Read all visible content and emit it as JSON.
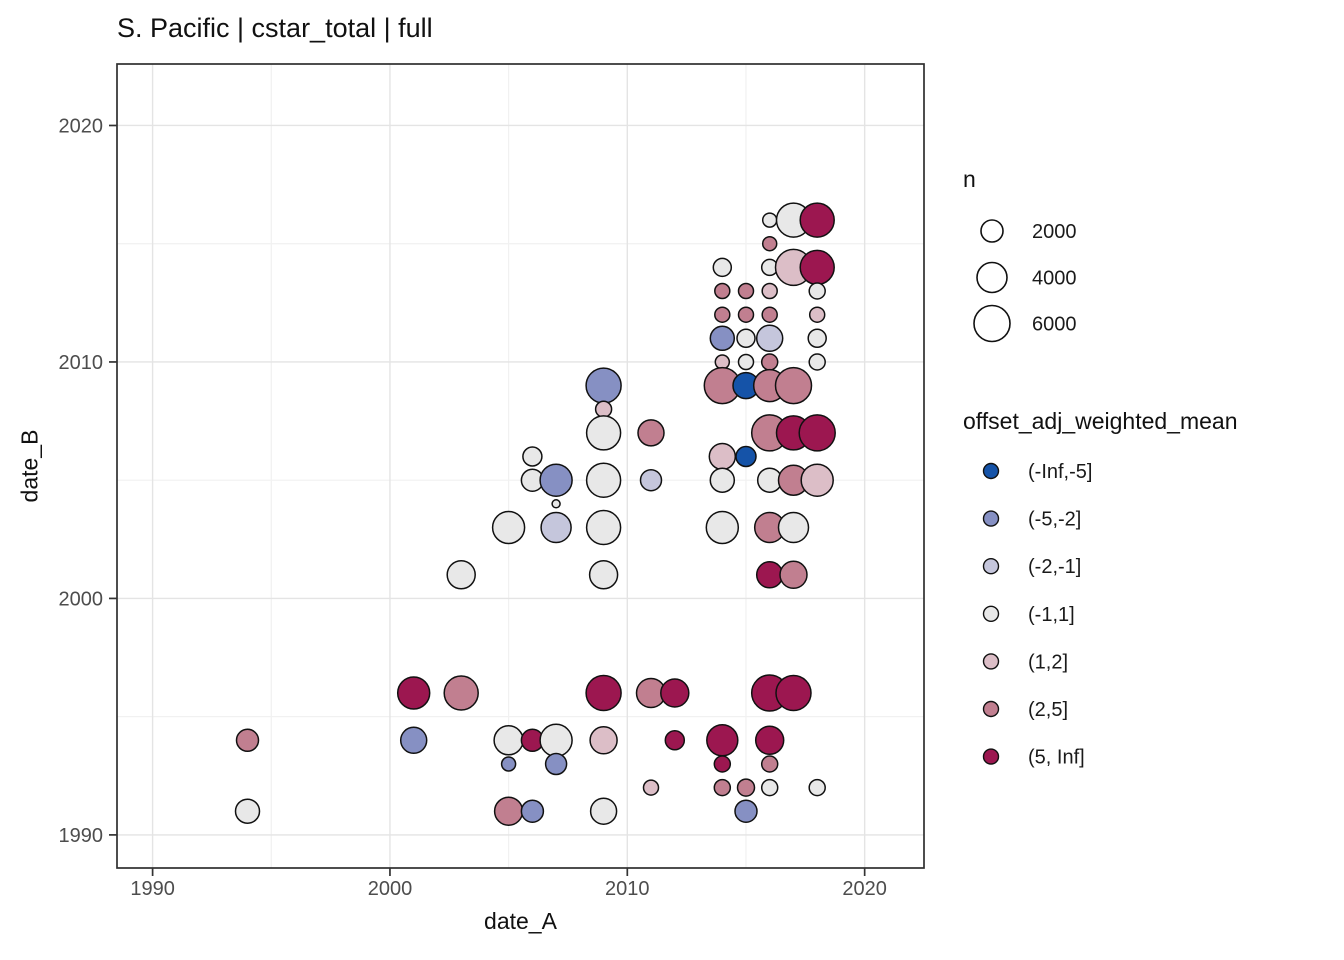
{
  "chart": {
    "title": "S. Pacific | cstar_total | full",
    "x_axis": {
      "title": "date_A",
      "ticks": [
        1990,
        2000,
        2010,
        2020
      ],
      "minor_ticks": [
        1995,
        2005,
        2015
      ],
      "lim": [
        1988.5,
        2022.5
      ]
    },
    "y_axis": {
      "title": "date_B",
      "ticks": [
        1990,
        2000,
        2010,
        2020
      ],
      "minor_ticks": [
        1995,
        2005,
        2015
      ],
      "lim": [
        1988.6,
        2022.6
      ]
    }
  },
  "legend_size": {
    "title": "n",
    "items": [
      {
        "n": "2000",
        "r": 11
      },
      {
        "n": "4000",
        "r": 15
      },
      {
        "n": "6000",
        "r": 18
      }
    ]
  },
  "legend_color": {
    "title": "offset_adj_weighted_mean",
    "items": [
      {
        "label": "(-Inf,-5]",
        "color": "#1553A8"
      },
      {
        "label": "(-5,-2]",
        "color": "#8690C3"
      },
      {
        "label": "(-2,-1]",
        "color": "#C5C6DC"
      },
      {
        "label": "(-1,1]",
        "color": "#E8E8E8"
      },
      {
        "label": "(1,2]",
        "color": "#DCBEC7"
      },
      {
        "label": "(2,5]",
        "color": "#C17F90"
      },
      {
        "label": "(5, Inf]",
        "color": "#9C1750"
      }
    ]
  },
  "chart_data": {
    "type": "scatter",
    "title": "S. Pacific | cstar_total | full",
    "xlabel": "date_A",
    "ylabel": "date_B",
    "xlim": [
      1988.5,
      2022.5
    ],
    "ylim": [
      1988.6,
      2022.6
    ],
    "grid": true,
    "legend_position": "right",
    "size_variable": "n",
    "color_variable": "offset_adj_weighted_mean",
    "color_bins": [
      "(-Inf,-5]",
      "(-5,-2]",
      "(-2,-1]",
      "(-1,1]",
      "(1,2]",
      "(2,5]",
      "(5, Inf]"
    ],
    "point_columns": [
      "date_A",
      "date_B",
      "color_bin_index",
      "radius_px",
      "n_approx"
    ],
    "points": [
      [
        1994,
        1994,
        5,
        11,
        2000
      ],
      [
        1994,
        1991,
        3,
        12,
        2400
      ],
      [
        2001,
        1996,
        6,
        16,
        4200
      ],
      [
        2001,
        1994,
        1,
        13,
        2800
      ],
      [
        2003,
        2001,
        3,
        14,
        3200
      ],
      [
        2003,
        1996,
        5,
        17,
        4800
      ],
      [
        2005,
        2003,
        3,
        16,
        4200
      ],
      [
        2005,
        1994,
        3,
        14.5,
        3500
      ],
      [
        2005,
        1993,
        1,
        7,
        800
      ],
      [
        2005,
        1991,
        5,
        14,
        3200
      ],
      [
        2006,
        2006,
        3,
        9.5,
        1500
      ],
      [
        2006,
        2005,
        3,
        11,
        2000
      ],
      [
        2006,
        1994,
        6,
        11,
        2000
      ],
      [
        2006,
        1991,
        1,
        11,
        2000
      ],
      [
        2007,
        2005,
        1,
        16,
        4200
      ],
      [
        2007,
        2004,
        3,
        4,
        300
      ],
      [
        2007,
        2003,
        2,
        15,
        3700
      ],
      [
        2007,
        1994,
        3,
        16,
        4200
      ],
      [
        2007,
        1993,
        1,
        10.5,
        1800
      ],
      [
        2009,
        2009,
        1,
        17.5,
        5100
      ],
      [
        2009,
        2008,
        4,
        8,
        1100
      ],
      [
        2009,
        2007,
        3,
        17,
        4800
      ],
      [
        2009,
        2005,
        3,
        17,
        4800
      ],
      [
        2009,
        2003,
        3,
        17,
        4800
      ],
      [
        2009,
        2001,
        3,
        14,
        3200
      ],
      [
        2009,
        1996,
        6,
        17.5,
        5100
      ],
      [
        2009,
        1994,
        4,
        13.5,
        3000
      ],
      [
        2009,
        1991,
        3,
        13,
        2800
      ],
      [
        2011,
        2007,
        5,
        13,
        2800
      ],
      [
        2011,
        2005,
        2,
        10.5,
        1800
      ],
      [
        2011,
        1996,
        5,
        14.5,
        3500
      ],
      [
        2011,
        1992,
        4,
        7.5,
        900
      ],
      [
        2012,
        1996,
        6,
        14,
        3200
      ],
      [
        2012,
        1994,
        6,
        9.5,
        1500
      ],
      [
        2014,
        2014,
        3,
        9,
        1300
      ],
      [
        2014,
        2013,
        5,
        7.5,
        900
      ],
      [
        2014,
        2012,
        5,
        7.5,
        900
      ],
      [
        2014,
        2011,
        1,
        12,
        2400
      ],
      [
        2014,
        2010,
        4,
        7,
        800
      ],
      [
        2014,
        2009,
        5,
        18,
        5400
      ],
      [
        2014,
        2006,
        4,
        13,
        2800
      ],
      [
        2014,
        2005,
        3,
        12,
        2400
      ],
      [
        2014,
        2003,
        3,
        16,
        4200
      ],
      [
        2014,
        1994,
        6,
        15.5,
        4000
      ],
      [
        2014,
        1993,
        6,
        8,
        1100
      ],
      [
        2014,
        1992,
        5,
        8,
        1100
      ],
      [
        2015,
        2013,
        5,
        7.5,
        900
      ],
      [
        2015,
        2012,
        5,
        7.5,
        900
      ],
      [
        2015,
        2011,
        3,
        9,
        1300
      ],
      [
        2015,
        2010,
        3,
        7.5,
        900
      ],
      [
        2015,
        2009,
        0,
        13,
        2800
      ],
      [
        2015,
        2006,
        0,
        10,
        1700
      ],
      [
        2015,
        1992,
        5,
        8.5,
        1200
      ],
      [
        2015,
        1991,
        1,
        11,
        2000
      ],
      [
        2016,
        2016,
        3,
        7,
        800
      ],
      [
        2016,
        2015,
        5,
        7,
        800
      ],
      [
        2016,
        2014,
        3,
        8,
        1100
      ],
      [
        2016,
        2013,
        4,
        7.5,
        900
      ],
      [
        2016,
        2012,
        5,
        7.5,
        900
      ],
      [
        2016,
        2011,
        2,
        13,
        2800
      ],
      [
        2016,
        2010,
        5,
        8,
        1100
      ],
      [
        2016,
        2009,
        5,
        16,
        4200
      ],
      [
        2016,
        2007,
        5,
        18,
        5400
      ],
      [
        2016,
        2005,
        3,
        12,
        2400
      ],
      [
        2016,
        2003,
        5,
        15,
        3700
      ],
      [
        2016,
        2001,
        6,
        13,
        2800
      ],
      [
        2016,
        1996,
        6,
        18,
        5400
      ],
      [
        2016,
        1994,
        6,
        14,
        3200
      ],
      [
        2016,
        1993,
        5,
        8,
        1100
      ],
      [
        2016,
        1992,
        3,
        8,
        1100
      ],
      [
        2017,
        2016,
        3,
        17,
        4800
      ],
      [
        2017,
        2014,
        4,
        18,
        5400
      ],
      [
        2017,
        2009,
        5,
        18,
        5400
      ],
      [
        2017,
        2007,
        6,
        17,
        4800
      ],
      [
        2017,
        2005,
        5,
        15,
        3700
      ],
      [
        2017,
        2003,
        3,
        15,
        3700
      ],
      [
        2017,
        2001,
        5,
        13.5,
        3000
      ],
      [
        2017,
        1996,
        6,
        17.5,
        5100
      ],
      [
        2018,
        2016,
        6,
        17,
        4800
      ],
      [
        2018,
        2014,
        6,
        17,
        4800
      ],
      [
        2018,
        2013,
        3,
        8,
        1100
      ],
      [
        2018,
        2012,
        4,
        7.5,
        900
      ],
      [
        2018,
        2011,
        3,
        9,
        1300
      ],
      [
        2018,
        2010,
        3,
        8,
        1100
      ],
      [
        2018,
        2007,
        6,
        18,
        5400
      ],
      [
        2018,
        2005,
        4,
        16,
        4200
      ],
      [
        2018,
        1992,
        3,
        8,
        1100
      ]
    ]
  },
  "style": {
    "grid_major_color": "#e4e4e4",
    "grid_minor_color": "#f1f1f1",
    "panel_border_color": "#2f2f2f",
    "point_stroke_color": "#111111",
    "tick_color": "#333333"
  }
}
